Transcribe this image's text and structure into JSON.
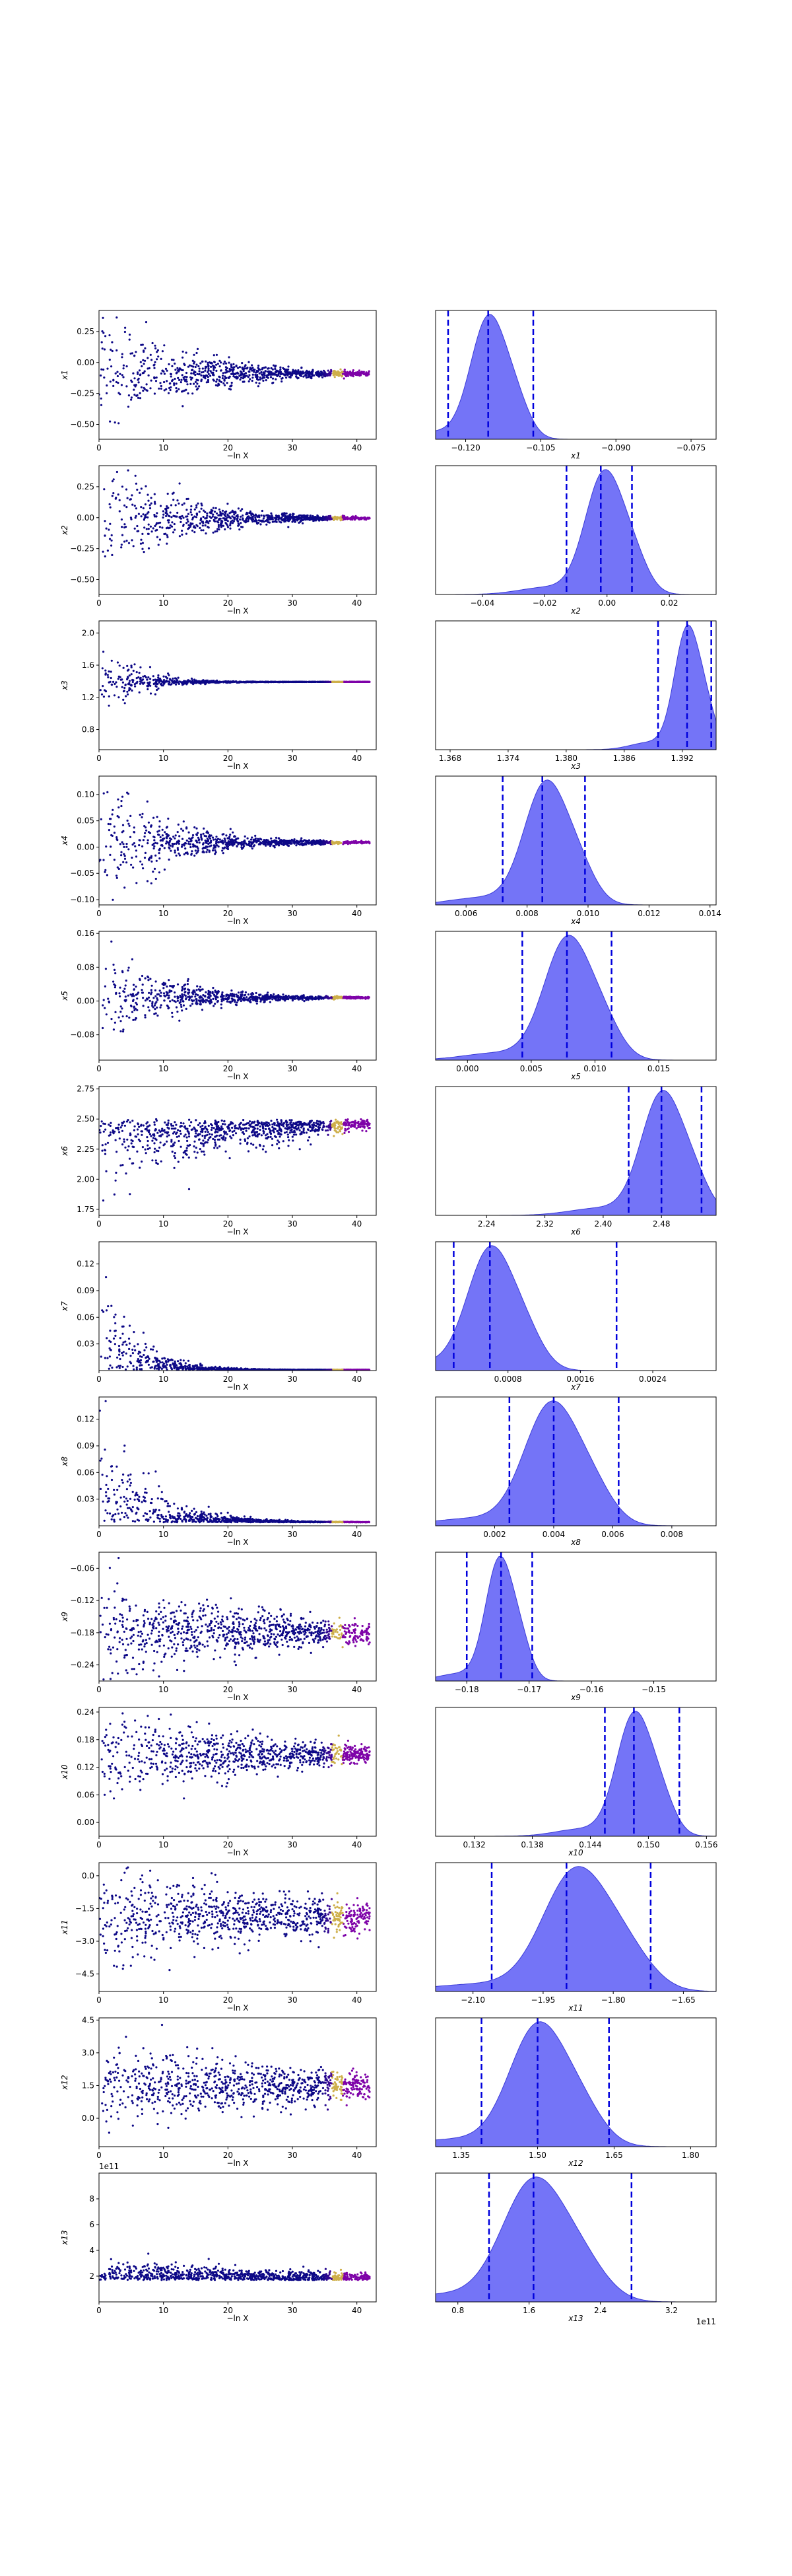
{
  "figure": {
    "left_xlabel": "−ln X",
    "footer_offset": "1e11"
  },
  "chart_data": [
    {
      "panel": "x1",
      "type": "trace_and_posterior",
      "trace": {
        "ylabel": "x1",
        "ylim": [
          -0.62,
          0.42
        ],
        "yticks": [
          "0.25",
          "0.00",
          "−0.25",
          "−0.50"
        ],
        "ytick_values": [
          0.25,
          0,
          -0.25,
          -0.5
        ],
        "xlabel": "−ln X",
        "xlim": [
          0,
          43
        ],
        "xticks": [
          0,
          10,
          20,
          30,
          40
        ],
        "y_final": -0.09,
        "spread0": 0.28,
        "decay": 12,
        "offset": ""
      },
      "posterior": {
        "xlabel": "x1",
        "xlim": [
          -0.126,
          -0.07
        ],
        "xticks": [
          "−0.120",
          "−0.105",
          "−0.090",
          "−0.075"
        ],
        "xtick_values": [
          -0.12,
          -0.105,
          -0.09,
          -0.075
        ],
        "quantiles": [
          -0.1235,
          -0.1155,
          -0.1065
        ],
        "peak": -0.1155,
        "width": 0.0035,
        "offset": ""
      }
    },
    {
      "panel": "x2",
      "type": "trace_and_posterior",
      "trace": {
        "ylabel": "x2",
        "ylim": [
          -0.62,
          0.42
        ],
        "yticks": [
          "0.25",
          "0.00",
          "−0.25",
          "−0.50"
        ],
        "ytick_values": [
          0.25,
          0,
          -0.25,
          -0.5
        ],
        "xlabel": "−ln X",
        "xlim": [
          0,
          43
        ],
        "xticks": [
          0,
          10,
          20,
          30,
          40
        ],
        "y_final": -0.005,
        "spread0": 0.3,
        "decay": 10,
        "offset": ""
      },
      "posterior": {
        "xlabel": "x2",
        "xlim": [
          -0.055,
          0.035
        ],
        "xticks": [
          "−0.04",
          "−0.02",
          "0.00",
          "0.02"
        ],
        "xtick_values": [
          -0.04,
          -0.02,
          0,
          0.02
        ],
        "quantiles": [
          -0.013,
          -0.002,
          0.008
        ],
        "peak": -0.001,
        "width": 0.006,
        "offset": ""
      }
    },
    {
      "panel": "x3",
      "type": "trace_and_posterior",
      "trace": {
        "ylabel": "x3",
        "ylim": [
          0.55,
          2.15
        ],
        "yticks": [
          "2.0",
          "1.6",
          "1.2",
          "0.8"
        ],
        "ytick_values": [
          2,
          1.6,
          1.2,
          0.8
        ],
        "xlabel": "−ln X",
        "xlim": [
          0,
          43
        ],
        "xticks": [
          0,
          10,
          20,
          30,
          40
        ],
        "y_final": 1.392,
        "spread0": 0.25,
        "decay": 5,
        "offset": ""
      },
      "posterior": {
        "xlabel": "x3",
        "xlim": [
          1.3665,
          1.3955
        ],
        "xticks": [
          "1.368",
          "1.374",
          "1.380",
          "1.386",
          "1.392"
        ],
        "xtick_values": [
          1.368,
          1.374,
          1.38,
          1.386,
          1.392
        ],
        "quantiles": [
          1.3895,
          1.3925,
          1.395
        ],
        "peak": 1.3925,
        "width": 0.0013,
        "offset": ""
      }
    },
    {
      "panel": "x4",
      "type": "trace_and_posterior",
      "trace": {
        "ylabel": "x4",
        "ylim": [
          -0.11,
          0.135
        ],
        "yticks": [
          "0.10",
          "0.05",
          "0.00",
          "−0.05",
          "−0.10"
        ],
        "ytick_values": [
          0.1,
          0.05,
          0,
          -0.05,
          -0.1
        ],
        "xlabel": "−ln X",
        "xlim": [
          0,
          43
        ],
        "xticks": [
          0,
          10,
          20,
          30,
          40
        ],
        "y_final": 0.009,
        "spread0": 0.06,
        "decay": 10,
        "offset": ""
      },
      "posterior": {
        "xlabel": "x4",
        "xlim": [
          0.005,
          0.0142
        ],
        "xticks": [
          "0.006",
          "0.008",
          "0.010",
          "0.012",
          "0.014"
        ],
        "xtick_values": [
          0.006,
          0.008,
          0.01,
          0.012,
          0.014
        ],
        "quantiles": [
          0.0072,
          0.0085,
          0.0099
        ],
        "peak": 0.0086,
        "width": 0.0007,
        "offset": ""
      }
    },
    {
      "panel": "x5",
      "type": "trace_and_posterior",
      "trace": {
        "ylabel": "x5",
        "ylim": [
          -0.14,
          0.165
        ],
        "yticks": [
          "0.16",
          "0.08",
          "0.00",
          "−0.08"
        ],
        "ytick_values": [
          0.16,
          0.08,
          0,
          -0.08
        ],
        "xlabel": "−ln X",
        "xlim": [
          0,
          43
        ],
        "xticks": [
          0,
          10,
          20,
          30,
          40
        ],
        "y_final": 0.008,
        "spread0": 0.06,
        "decay": 10,
        "offset": ""
      },
      "posterior": {
        "xlabel": "x5",
        "xlim": [
          -0.0025,
          0.0195
        ],
        "xticks": [
          "0.000",
          "0.005",
          "0.010",
          "0.015"
        ],
        "xtick_values": [
          0,
          0.005,
          0.01,
          0.015
        ],
        "quantiles": [
          0.0043,
          0.0078,
          0.0113
        ],
        "peak": 0.0078,
        "width": 0.0018,
        "offset": ""
      }
    },
    {
      "panel": "x6",
      "type": "trace_and_posterior",
      "trace": {
        "ylabel": "x6",
        "ylim": [
          1.7,
          2.77
        ],
        "yticks": [
          "2.75",
          "2.50",
          "2.25",
          "2.00",
          "1.75"
        ],
        "ytick_values": [
          2.75,
          2.5,
          2.25,
          2,
          1.75
        ],
        "xlabel": "−ln X",
        "xlim": [
          0,
          43
        ],
        "xticks": [
          0,
          10,
          20,
          30,
          40
        ],
        "y_final": 2.48,
        "spread0": 0.22,
        "decay": 40,
        "rise": true,
        "offset": ""
      },
      "posterior": {
        "xlabel": "x6",
        "xlim": [
          2.17,
          2.555
        ],
        "xticks": [
          "2.24",
          "2.32",
          "2.40",
          "2.48"
        ],
        "xtick_values": [
          2.24,
          2.32,
          2.4,
          2.48
        ],
        "quantiles": [
          2.435,
          2.48,
          2.535
        ],
        "peak": 2.48,
        "width": 0.028,
        "offset": ""
      }
    },
    {
      "panel": "x7",
      "type": "trace_and_posterior",
      "trace": {
        "ylabel": "x7",
        "ylim": [
          0.0,
          0.145
        ],
        "yticks": [
          "0.12",
          "0.09",
          "0.06",
          "0.03"
        ],
        "ytick_values": [
          0.12,
          0.09,
          0.06,
          0.03
        ],
        "xlabel": "−ln X",
        "xlim": [
          0,
          43
        ],
        "xticks": [
          0,
          10,
          20,
          30,
          40
        ],
        "y_final": 0.0008,
        "spread0": 0.05,
        "decay": 5,
        "positive": true,
        "offset": ""
      },
      "posterior": {
        "xlabel": "x7",
        "xlim": [
          0.0,
          0.0031
        ],
        "xticks": [
          "0.0008",
          "0.0016",
          "0.0024"
        ],
        "xtick_values": [
          0.0008,
          0.0016,
          0.0024
        ],
        "quantiles": [
          0.0002,
          0.0006,
          0.002
        ],
        "peak": 0.0006,
        "width": 0.00025,
        "offset": ""
      }
    },
    {
      "panel": "x8",
      "type": "trace_and_posterior",
      "trace": {
        "ylabel": "x8",
        "ylim": [
          0.0,
          0.145
        ],
        "yticks": [
          "0.12",
          "0.09",
          "0.06",
          "0.03"
        ],
        "ytick_values": [
          0.12,
          0.09,
          0.06,
          0.03
        ],
        "xlabel": "−ln X",
        "xlim": [
          0,
          43
        ],
        "xticks": [
          0,
          10,
          20,
          30,
          40
        ],
        "y_final": 0.004,
        "spread0": 0.05,
        "decay": 7,
        "positive": true,
        "offset": ""
      },
      "posterior": {
        "xlabel": "x8",
        "xlim": [
          0.0,
          0.0095
        ],
        "xticks": [
          "0.002",
          "0.004",
          "0.006",
          "0.008"
        ],
        "xtick_values": [
          0.002,
          0.004,
          0.006,
          0.008
        ],
        "quantiles": [
          0.0025,
          0.004,
          0.0062
        ],
        "peak": 0.0039,
        "width": 0.0009,
        "offset": ""
      }
    },
    {
      "panel": "x9",
      "type": "trace_and_posterior",
      "trace": {
        "ylabel": "x9",
        "ylim": [
          -0.27,
          -0.03
        ],
        "yticks": [
          "−0.06",
          "−0.12",
          "−0.18",
          "−0.24"
        ],
        "ytick_values": [
          -0.06,
          -0.12,
          -0.18,
          -0.24
        ],
        "xlabel": "−ln X",
        "xlim": [
          0,
          43
        ],
        "xticks": [
          0,
          10,
          20,
          30,
          40
        ],
        "y_final": -0.18,
        "spread0": 0.05,
        "decay": 25,
        "offset": ""
      },
      "posterior": {
        "xlabel": "x9",
        "xlim": [
          -0.185,
          -0.14
        ],
        "xticks": [
          "−0.18",
          "−0.17",
          "−0.16",
          "−0.15"
        ],
        "xtick_values": [
          -0.18,
          -0.17,
          -0.16,
          -0.15
        ],
        "quantiles": [
          -0.18,
          -0.1745,
          -0.1695
        ],
        "peak": -0.1748,
        "width": 0.0022,
        "offset": ""
      }
    },
    {
      "panel": "x10",
      "type": "trace_and_posterior",
      "trace": {
        "ylabel": "x10",
        "ylim": [
          -0.03,
          0.25
        ],
        "yticks": [
          "0.24",
          "0.18",
          "0.12",
          "0.06",
          "0.00"
        ],
        "ytick_values": [
          0.24,
          0.18,
          0.12,
          0.06,
          0
        ],
        "xlabel": "−ln X",
        "xlim": [
          0,
          43
        ],
        "xticks": [
          0,
          10,
          20,
          30,
          40
        ],
        "y_final": 0.148,
        "spread0": 0.05,
        "decay": 25,
        "offset": ""
      },
      "posterior": {
        "xlabel": "x10",
        "xlim": [
          0.128,
          0.157
        ],
        "xticks": [
          "0.132",
          "0.138",
          "0.144",
          "0.150",
          "0.156"
        ],
        "xtick_values": [
          0.132,
          0.138,
          0.144,
          0.15,
          0.156
        ],
        "quantiles": [
          0.1455,
          0.1485,
          0.1532
        ],
        "peak": 0.1485,
        "width": 0.0018,
        "offset": ""
      }
    },
    {
      "panel": "x11",
      "type": "trace_and_posterior",
      "trace": {
        "ylabel": "x11",
        "ylim": [
          -5.3,
          0.6
        ],
        "yticks": [
          "0.0",
          "−1.5",
          "−3.0",
          "−4.5"
        ],
        "ytick_values": [
          0,
          -1.5,
          -3,
          -4.5
        ],
        "xlabel": "−ln X",
        "xlim": [
          0,
          43
        ],
        "xticks": [
          0,
          10,
          20,
          30,
          40
        ],
        "y_final": -1.9,
        "spread0": 1.1,
        "decay": 35,
        "offset": ""
      },
      "posterior": {
        "xlabel": "x11",
        "xlim": [
          -2.18,
          -1.58
        ],
        "xticks": [
          "−2.10",
          "−1.95",
          "−1.80",
          "−1.65"
        ],
        "xtick_values": [
          -2.1,
          -1.95,
          -1.8,
          -1.65
        ],
        "quantiles": [
          -2.06,
          -1.9,
          -1.72
        ],
        "peak": -1.88,
        "width": 0.07,
        "offset": ""
      }
    },
    {
      "panel": "x12",
      "type": "trace_and_posterior",
      "trace": {
        "ylabel": "x12",
        "ylim": [
          -1.3,
          4.6
        ],
        "yticks": [
          "4.5",
          "3.0",
          "1.5",
          "0.0"
        ],
        "ytick_values": [
          4.5,
          3,
          1.5,
          0
        ],
        "xlabel": "−ln X",
        "xlim": [
          0,
          43
        ],
        "xticks": [
          0,
          10,
          20,
          30,
          40
        ],
        "y_final": 1.5,
        "spread0": 0.9,
        "decay": 40,
        "offset": ""
      },
      "posterior": {
        "xlabel": "x12",
        "xlim": [
          1.3,
          1.85
        ],
        "xticks": [
          "1.35",
          "1.50",
          "1.65",
          "1.80"
        ],
        "xtick_values": [
          1.35,
          1.5,
          1.65,
          1.8
        ],
        "quantiles": [
          1.39,
          1.5,
          1.64
        ],
        "peak": 1.5,
        "width": 0.055,
        "offset": ""
      }
    },
    {
      "panel": "x13",
      "type": "trace_and_posterior",
      "trace": {
        "ylabel": "x13",
        "ylim": [
          0.0,
          10.0
        ],
        "yticks": [
          "8",
          "6",
          "4",
          "2"
        ],
        "ytick_values": [
          8,
          6,
          4,
          2
        ],
        "xlabel": "−ln X",
        "xlim": [
          0,
          43
        ],
        "xticks": [
          0,
          10,
          20,
          30,
          40
        ],
        "y_final": 1.7,
        "spread0": 0.6,
        "decay": 40,
        "positive": true,
        "offset": "1e11"
      },
      "posterior": {
        "xlabel": "x13",
        "xlim": [
          0.55,
          3.7
        ],
        "xticks": [
          "0.8",
          "1.6",
          "2.4",
          "3.2"
        ],
        "xtick_values": [
          0.8,
          1.6,
          2.4,
          3.2
        ],
        "quantiles": [
          1.15,
          1.65,
          2.75
        ],
        "peak": 1.65,
        "width": 0.35,
        "offset": "1e11"
      }
    }
  ],
  "colors": {
    "trace_low": "#0d0887",
    "trace_mid": "#7e03a8",
    "trace_high": "#f0f921",
    "kde_fill": "#5c5cf6",
    "kde_edge": "#3b3bd8",
    "quantile_line": "#0000dd",
    "axis": "#000000"
  }
}
